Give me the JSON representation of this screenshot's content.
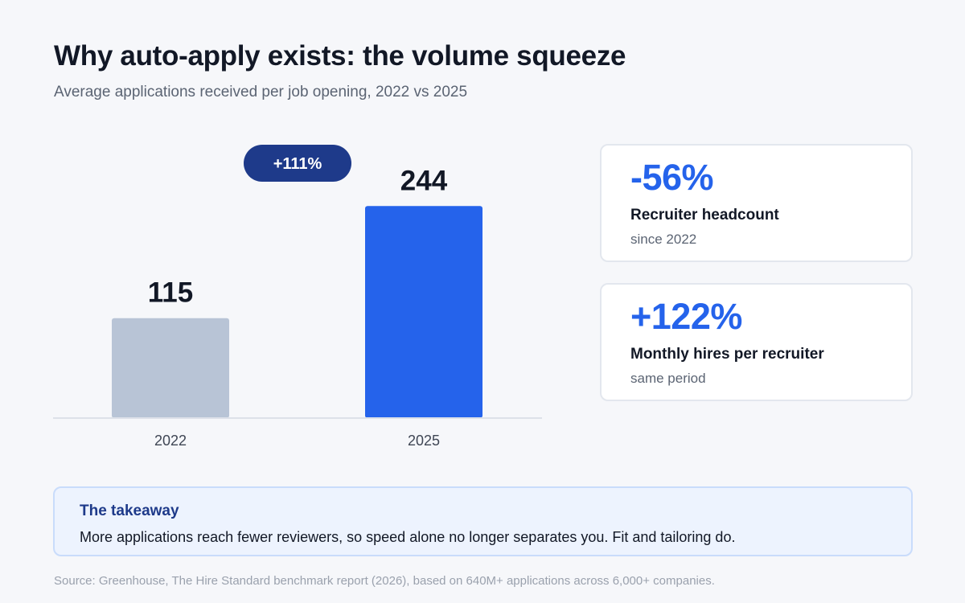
{
  "header": {
    "title": "Why auto-apply exists: the volume squeeze",
    "subtitle": "Average applications received per job opening, 2022 vs 2025"
  },
  "chart_data": {
    "type": "bar",
    "categories": [
      "2022",
      "2025"
    ],
    "values": [
      115,
      244
    ],
    "value_labels": [
      "115",
      "244"
    ],
    "bar_colors": [
      "#b8c4d6",
      "#2563eb"
    ],
    "ylim": [
      0,
      260
    ],
    "grid": false,
    "change_badge": {
      "text": "+111%",
      "color": "#1e3a8a"
    }
  },
  "stats": [
    {
      "value": "-56%",
      "label": "Recruiter headcount",
      "sub": "since 2022"
    },
    {
      "value": "+122%",
      "label": "Monthly hires per recruiter",
      "sub": "same period"
    }
  ],
  "takeaway": {
    "title": "The takeaway",
    "body": "More applications reach fewer reviewers, so speed alone no longer separates you. Fit and tailoring do."
  },
  "source": "Source: Greenhouse, The Hire Standard benchmark report (2026), based on 640M+ applications across 6,000+ companies.",
  "colors": {
    "accent": "#2563eb",
    "navy": "#1e3a8a",
    "muted_bar": "#b8c4d6"
  }
}
